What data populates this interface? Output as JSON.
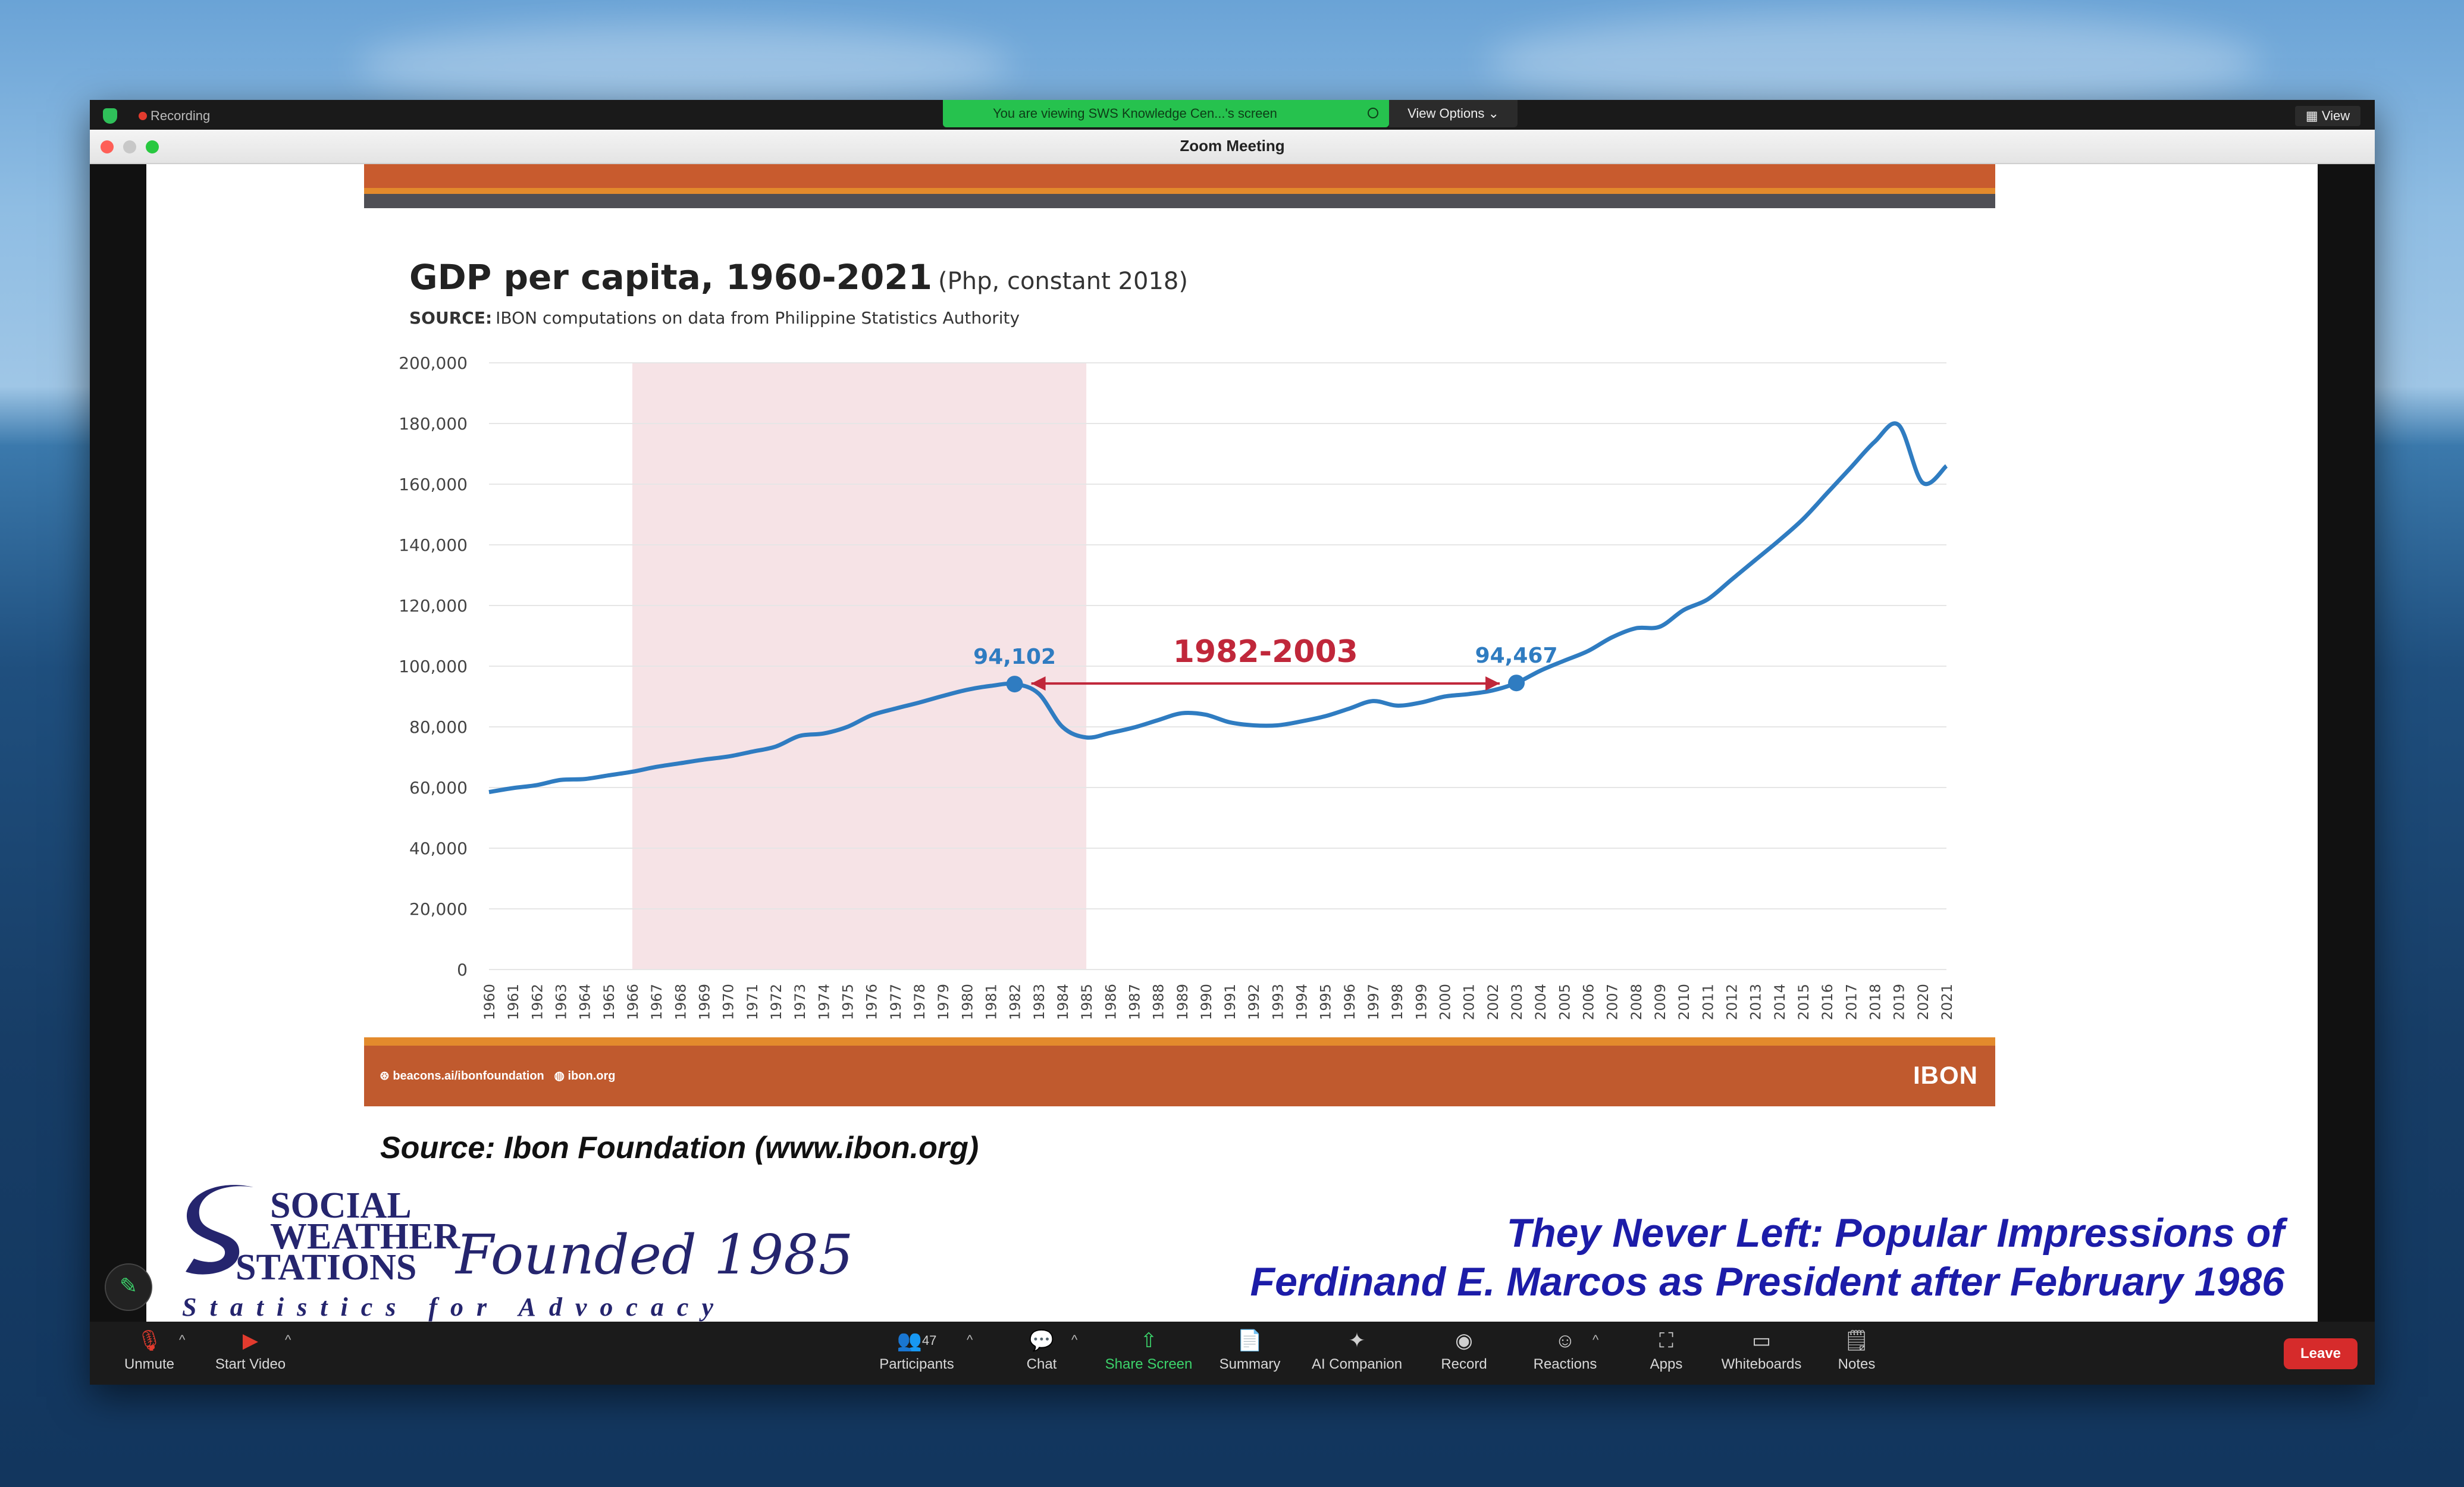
{
  "window": {
    "title": "Zoom Meeting",
    "recording_label": "Recording",
    "viewing_banner": "You are viewing SWS Knowledge Cen...'s screen",
    "view_options": "View Options",
    "view_button": "View"
  },
  "slide": {
    "chart_title": "GDP per capita, 1960-2021",
    "chart_subtitle": "(Php, constant 2018)",
    "source_label": "SOURCE:",
    "source_text": "IBON computations on data from Philippine Statistics Authority",
    "footer_link1": "beacons.ai/ibonfoundation",
    "footer_link2": "ibon.org",
    "logo": "IBON"
  },
  "chart_data": {
    "type": "line",
    "title": "GDP per capita, 1960-2021",
    "subtitle": "(Php, constant 2018)",
    "ylim": [
      0,
      200000
    ],
    "yticks": [
      "0",
      "20,000",
      "40,000",
      "60,000",
      "80,000",
      "100,000",
      "120,000",
      "140,000",
      "160,000",
      "180,000",
      "200,000"
    ],
    "x": [
      1960,
      1961,
      1962,
      1963,
      1964,
      1965,
      1966,
      1967,
      1968,
      1969,
      1970,
      1971,
      1972,
      1973,
      1974,
      1975,
      1976,
      1977,
      1978,
      1979,
      1980,
      1981,
      1982,
      1983,
      1984,
      1985,
      1986,
      1987,
      1988,
      1989,
      1990,
      1991,
      1992,
      1993,
      1994,
      1995,
      1996,
      1997,
      1998,
      1999,
      2000,
      2001,
      2002,
      2003,
      2004,
      2005,
      2006,
      2007,
      2008,
      2009,
      2010,
      2011,
      2012,
      2013,
      2014,
      2015,
      2016,
      2017,
      2018,
      2019,
      2020,
      2021
    ],
    "series": [
      {
        "color": "#2f7cc1",
        "values": [
          58500,
          59800,
          60800,
          62500,
          62800,
          64000,
          65200,
          66800,
          68000,
          69200,
          70200,
          71800,
          73500,
          77000,
          77800,
          80000,
          83800,
          86000,
          88000,
          90200,
          92200,
          93500,
          94102,
          91000,
          80000,
          76500,
          78000,
          79800,
          82200,
          84500,
          84000,
          81500,
          80500,
          80500,
          81800,
          83500,
          86000,
          88500,
          87000,
          88000,
          90000,
          90800,
          92000,
          94467,
          98500,
          101800,
          105000,
          109500,
          112500,
          113000,
          118500,
          122000,
          128500,
          135000,
          141500,
          148500,
          157000,
          165500,
          174000,
          179500,
          160500,
          166000
        ]
      }
    ],
    "shaded_range": [
      1966,
      1985
    ],
    "annotations": [
      {
        "text": "94,102",
        "x": 1982,
        "y": 94102
      },
      {
        "text": "94,467",
        "x": 2003,
        "y": 94467
      },
      {
        "text": "1982-2003",
        "from": 1982,
        "to": 2003,
        "y": 94300
      }
    ],
    "grid": true,
    "legend": "none"
  },
  "caption": "Source: Ibon Foundation (www.ibon.org)",
  "sws": {
    "line1": "SOCIAL",
    "line2": "WEATHER",
    "line3": "STATIONS",
    "founded": "Founded 1985",
    "tagline": "Statistics for Advocacy"
  },
  "headline": {
    "line1": "They Never Left: Popular Impressions of",
    "line2": "Ferdinand E. Marcos as President after February 1986"
  },
  "toolbar": {
    "unmute": "Unmute",
    "start_video": "Start Video",
    "participants": "Participants",
    "participants_count": "47",
    "chat": "Chat",
    "share_screen": "Share Screen",
    "summary": "Summary",
    "ai_companion": "AI Companion",
    "record": "Record",
    "reactions": "Reactions",
    "apps": "Apps",
    "whiteboards": "Whiteboards",
    "notes": "Notes",
    "leave": "Leave"
  },
  "colors": {
    "line": "#2f7cc1",
    "shade": "#f6e3e6",
    "range_label": "#c0273a",
    "slide_orange": "#c05a2e",
    "headline_blue": "#1c1ca8",
    "share_green": "#3cd36b",
    "leave_red": "#d62b2b"
  }
}
